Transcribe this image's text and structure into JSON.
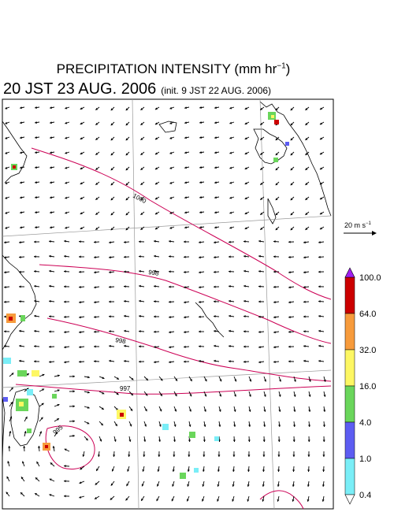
{
  "title_main": "PRECIPITATION INTENSITY (mm hr",
  "title_unit_exp": "−1",
  "title_close": ")",
  "valid_time": "20 JST 23 AUG. 2006",
  "init_time": "(init. 9 JST 22 AUG. 2006)",
  "reference_vector": {
    "label": "20 m s",
    "exp": "−1"
  },
  "isobar_labels": [
    "1000",
    "998",
    "998",
    "997",
    "995"
  ],
  "colorbar": {
    "levels": [
      "100.0",
      "64.0",
      "32.0",
      "16.0",
      "4.0",
      "1.0",
      "0.4"
    ],
    "colors": [
      "#cc0000",
      "#f79b3c",
      "#fdf763",
      "#6ad65b",
      "#5d5df2",
      "#7aeef7"
    ],
    "over_color": "#a020f0"
  },
  "colors": {
    "isobar": "#cc0055",
    "coast": "#000000",
    "grid": "#999999"
  }
}
